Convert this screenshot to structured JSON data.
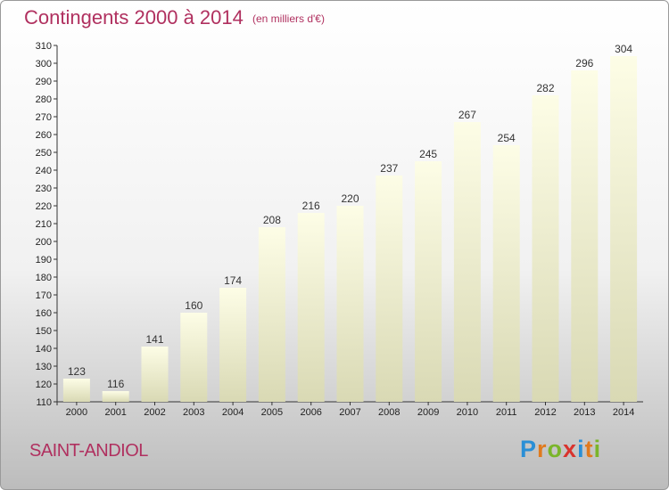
{
  "chart_data": {
    "type": "bar",
    "title": "Contingents 2000 à 2014",
    "subtitle": "(en milliers d'€)",
    "categories": [
      "2000",
      "2001",
      "2002",
      "2003",
      "2004",
      "2005",
      "2006",
      "2007",
      "2008",
      "2009",
      "2010",
      "2011",
      "2012",
      "2013",
      "2014"
    ],
    "values": [
      123,
      116,
      141,
      160,
      174,
      208,
      216,
      220,
      237,
      245,
      267,
      254,
      282,
      296,
      304
    ],
    "ylim": [
      110,
      310
    ],
    "yticks": [
      110,
      120,
      130,
      140,
      150,
      160,
      170,
      180,
      190,
      200,
      210,
      220,
      230,
      240,
      250,
      260,
      270,
      280,
      290,
      300,
      310
    ],
    "xlabel": "",
    "ylabel": "",
    "grid": false,
    "bar_color": "#f6f6cf"
  },
  "place_name": "SAINT-ANDIOL",
  "brand": {
    "name": "Proxiti",
    "letters": [
      {
        "ch": "P",
        "color": "#2a8fd6"
      },
      {
        "ch": "r",
        "color": "#e07a1e"
      },
      {
        "ch": "o",
        "color": "#7ab52a"
      },
      {
        "ch": "x",
        "color": "#d9332d"
      },
      {
        "ch": "i",
        "color": "#2a8fd6"
      },
      {
        "ch": "t",
        "color": "#e07a1e"
      },
      {
        "ch": "i",
        "color": "#7ab52a"
      }
    ]
  }
}
